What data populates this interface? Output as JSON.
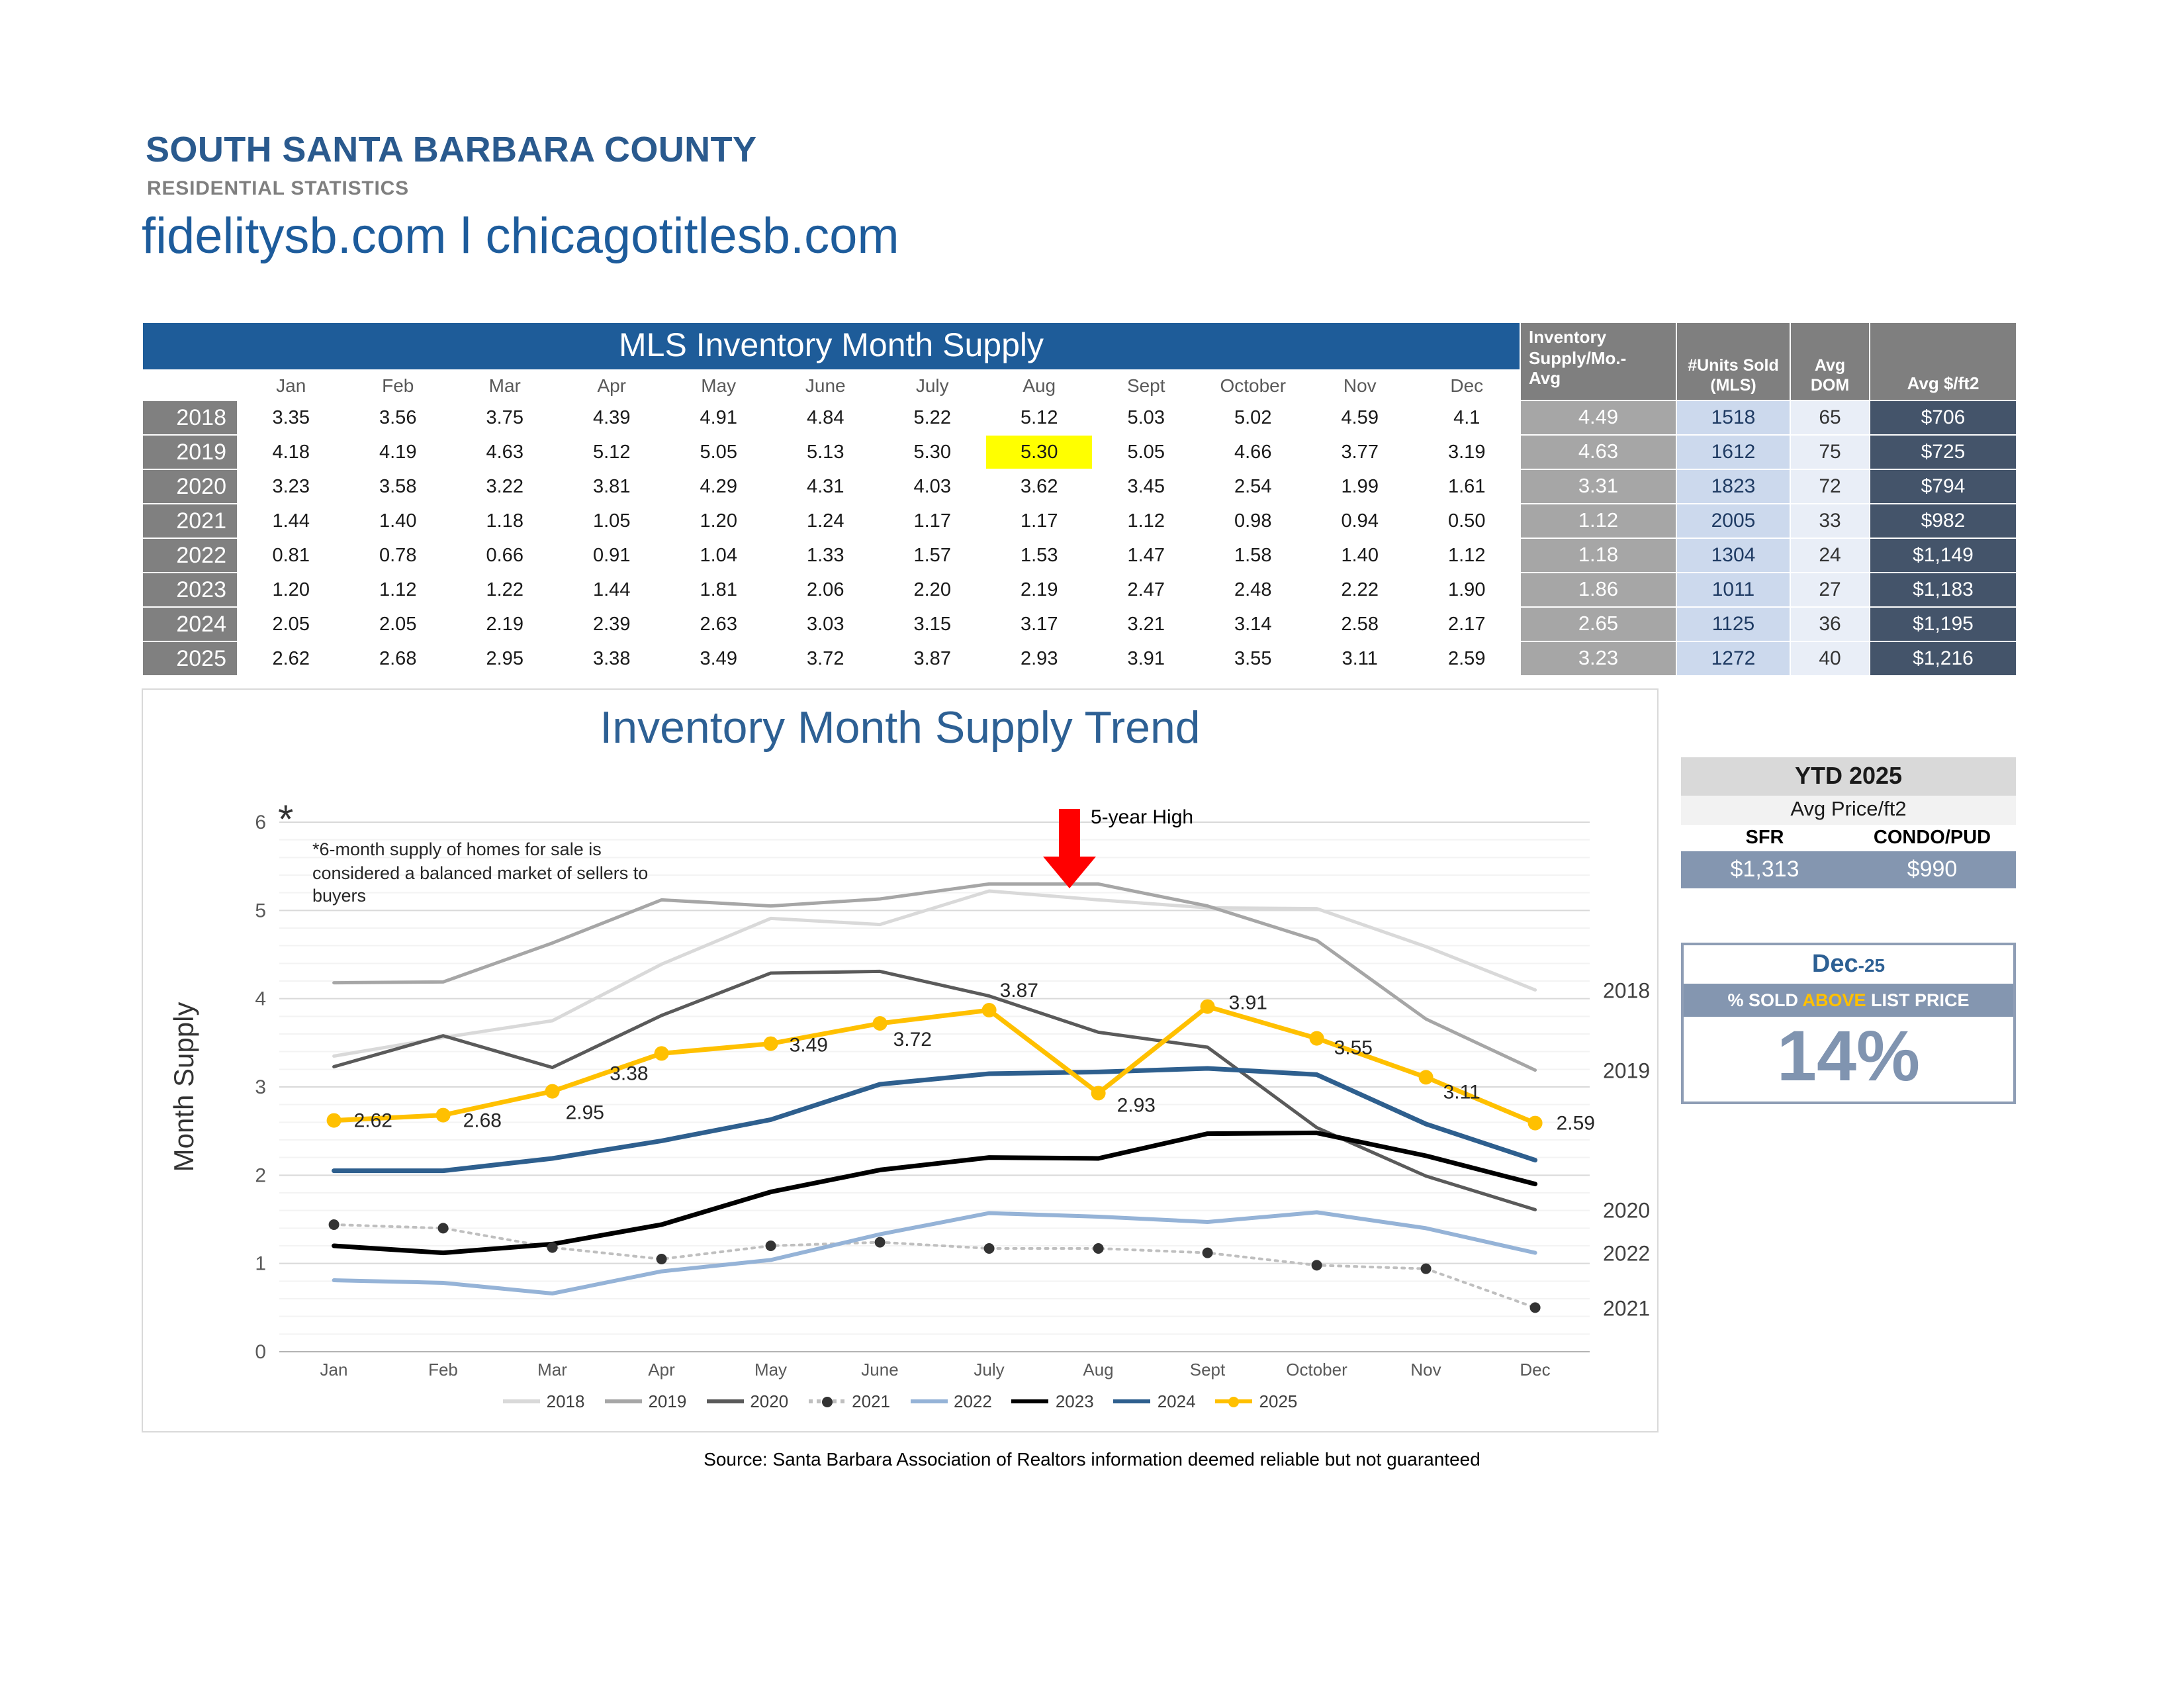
{
  "page": {
    "title": "SOUTH SANTA BARBARA COUNTY",
    "subtitle": "RESIDENTIAL STATISTICS",
    "website": "fidelitysb.com l chicagotitlesb.com",
    "source": "Source: Santa Barbara Association of Realtors information deemed reliable but not guaranteed"
  },
  "colors": {
    "brand_blue": "#1e5c99",
    "slate_blue": "#8496b0",
    "dark_slate": "#44546a",
    "gold": "#ffc000",
    "highlight_yellow": "#ffff00"
  },
  "table": {
    "title": "MLS Inventory Month Supply",
    "months": [
      "Jan",
      "Feb",
      "Mar",
      "Apr",
      "May",
      "June",
      "July",
      "Aug",
      "Sept",
      "October",
      "Nov",
      "Dec"
    ],
    "right_headers": {
      "avg": [
        "Inventory",
        "Supply/Mo.-",
        "Avg"
      ],
      "units": [
        "#Units Sold",
        "(MLS)"
      ],
      "dom": [
        "Avg",
        "DOM"
      ],
      "price": "Avg $/ft2"
    },
    "highlight": {
      "year": "2019",
      "month_index": 7
    },
    "rows": [
      {
        "year": "2018",
        "values": [
          "3.35",
          "3.56",
          "3.75",
          "4.39",
          "4.91",
          "4.84",
          "5.22",
          "5.12",
          "5.03",
          "5.02",
          "4.59",
          "4.1"
        ],
        "avg": "4.49",
        "units": "1518",
        "dom": "65",
        "price": "$706"
      },
      {
        "year": "2019",
        "values": [
          "4.18",
          "4.19",
          "4.63",
          "5.12",
          "5.05",
          "5.13",
          "5.30",
          "5.30",
          "5.05",
          "4.66",
          "3.77",
          "3.19"
        ],
        "avg": "4.63",
        "units": "1612",
        "dom": "75",
        "price": "$725"
      },
      {
        "year": "2020",
        "values": [
          "3.23",
          "3.58",
          "3.22",
          "3.81",
          "4.29",
          "4.31",
          "4.03",
          "3.62",
          "3.45",
          "2.54",
          "1.99",
          "1.61"
        ],
        "avg": "3.31",
        "units": "1823",
        "dom": "72",
        "price": "$794"
      },
      {
        "year": "2021",
        "values": [
          "1.44",
          "1.40",
          "1.18",
          "1.05",
          "1.20",
          "1.24",
          "1.17",
          "1.17",
          "1.12",
          "0.98",
          "0.94",
          "0.50"
        ],
        "avg": "1.12",
        "units": "2005",
        "dom": "33",
        "price": "$982"
      },
      {
        "year": "2022",
        "values": [
          "0.81",
          "0.78",
          "0.66",
          "0.91",
          "1.04",
          "1.33",
          "1.57",
          "1.53",
          "1.47",
          "1.58",
          "1.40",
          "1.12"
        ],
        "avg": "1.18",
        "units": "1304",
        "dom": "24",
        "price": "$1,149"
      },
      {
        "year": "2023",
        "values": [
          "1.20",
          "1.12",
          "1.22",
          "1.44",
          "1.81",
          "2.06",
          "2.20",
          "2.19",
          "2.47",
          "2.48",
          "2.22",
          "1.90"
        ],
        "avg": "1.86",
        "units": "1011",
        "dom": "27",
        "price": "$1,183"
      },
      {
        "year": "2024",
        "values": [
          "2.05",
          "2.05",
          "2.19",
          "2.39",
          "2.63",
          "3.03",
          "3.15",
          "3.17",
          "3.21",
          "3.14",
          "2.58",
          "2.17"
        ],
        "avg": "2.65",
        "units": "1125",
        "dom": "36",
        "price": "$1,195"
      },
      {
        "year": "2025",
        "values": [
          "2.62",
          "2.68",
          "2.95",
          "3.38",
          "3.49",
          "3.72",
          "3.87",
          "2.93",
          "3.91",
          "3.55",
          "3.11",
          "2.59"
        ],
        "avg": "3.23",
        "units": "1272",
        "dom": "40",
        "price": "$1,216"
      }
    ]
  },
  "chart_data": {
    "type": "line",
    "title": "Inventory Month Supply Trend",
    "ylabel": "Month Supply",
    "xlabel": "",
    "ylim": [
      0,
      6
    ],
    "grid": true,
    "legend_position": "bottom",
    "categories": [
      "Jan",
      "Feb",
      "Mar",
      "Apr",
      "May",
      "June",
      "July",
      "Aug",
      "Sept",
      "October",
      "Nov",
      "Dec"
    ],
    "series": [
      {
        "name": "2018",
        "color": "#d9d9d9",
        "values": [
          3.35,
          3.56,
          3.75,
          4.39,
          4.91,
          4.84,
          5.22,
          5.12,
          5.03,
          5.02,
          4.59,
          4.1
        ]
      },
      {
        "name": "2019",
        "color": "#a6a6a6",
        "values": [
          4.18,
          4.19,
          4.63,
          5.12,
          5.05,
          5.13,
          5.3,
          5.3,
          5.05,
          4.66,
          3.77,
          3.19
        ]
      },
      {
        "name": "2020",
        "color": "#5a5a5a",
        "values": [
          3.23,
          3.58,
          3.22,
          3.81,
          4.29,
          4.31,
          4.03,
          3.62,
          3.45,
          2.54,
          1.99,
          1.61
        ]
      },
      {
        "name": "2021",
        "color": "#bfbfbf",
        "values": [
          1.44,
          1.4,
          1.18,
          1.05,
          1.2,
          1.24,
          1.17,
          1.17,
          1.12,
          0.98,
          0.94,
          0.5
        ]
      },
      {
        "name": "2022",
        "color": "#95b3d7",
        "values": [
          0.81,
          0.78,
          0.66,
          0.91,
          1.04,
          1.33,
          1.57,
          1.53,
          1.47,
          1.58,
          1.4,
          1.12
        ]
      },
      {
        "name": "2023",
        "color": "#000000",
        "values": [
          1.2,
          1.12,
          1.22,
          1.44,
          1.81,
          2.06,
          2.2,
          2.19,
          2.47,
          2.48,
          2.22,
          1.9
        ]
      },
      {
        "name": "2024",
        "color": "#2e5f8e",
        "values": [
          2.05,
          2.05,
          2.19,
          2.39,
          2.63,
          3.03,
          3.15,
          3.17,
          3.21,
          3.14,
          2.58,
          2.17
        ]
      },
      {
        "name": "2025",
        "color": "#ffc000",
        "values": [
          2.62,
          2.68,
          2.95,
          3.38,
          3.49,
          3.72,
          3.87,
          2.93,
          3.91,
          3.55,
          3.11,
          2.59
        ]
      }
    ],
    "labeled_series": "2025",
    "end_labels": [
      "2018",
      "2019",
      "2020",
      "2022",
      "2021"
    ],
    "legend": [
      "2018",
      "2019",
      "2020",
      "2021",
      "2022",
      "2023",
      "2024",
      "2025"
    ],
    "high_label": "5-year High",
    "note": "*6-month supply of homes for sale is considered a balanced market of sellers to buyers",
    "asterisk": "*"
  },
  "ytd": {
    "title": "YTD 2025",
    "subtitle": "Avg Price/ft2",
    "col1": "SFR",
    "col2": "CONDO/PUD",
    "val1": "$1,313",
    "val2": "$990"
  },
  "dec": {
    "title_main": "Dec",
    "title_suffix": "-25",
    "bar_pre": "% SOLD ",
    "bar_above": "ABOVE",
    "bar_post": " LIST PRICE",
    "value": "14%"
  }
}
